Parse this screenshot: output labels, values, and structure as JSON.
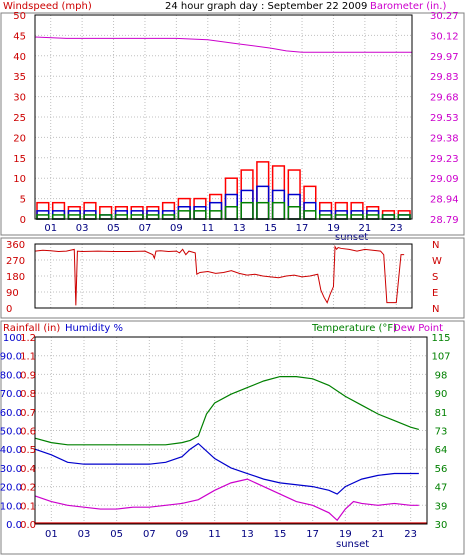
{
  "chart_data": [
    {
      "type": "bar",
      "title": "24 hour graph day : September 22 2009",
      "ylabel_left": "Windspeed (mph)",
      "ylabel_right": "Barometer (in.)",
      "ylim_left": [
        0,
        50
      ],
      "ylim_right": [
        28.79,
        30.27
      ],
      "yticks_left": [
        "0",
        "5",
        "10",
        "15",
        "20",
        "25",
        "30",
        "35",
        "40",
        "45",
        "50"
      ],
      "yticks_right": [
        "28.79",
        "28.94",
        "29.09",
        "29.23",
        "29.38",
        "29.53",
        "29.68",
        "29.83",
        "29.97",
        "30.12",
        "30.27"
      ],
      "xticks": [
        "01",
        "03",
        "05",
        "07",
        "09",
        "11",
        "13",
        "15",
        "17",
        "19",
        "21",
        "23"
      ],
      "x_annotation": "sunset",
      "grid": true,
      "gust_hourly": [
        4,
        4,
        3,
        4,
        3,
        3,
        3,
        3,
        4,
        5,
        5,
        6,
        10,
        12,
        14,
        13,
        12,
        8,
        4,
        4,
        4,
        3,
        2,
        2
      ],
      "speed_hourly": [
        2,
        2,
        2,
        2,
        1,
        2,
        2,
        2,
        2,
        3,
        3,
        4,
        6,
        7,
        8,
        7,
        6,
        4,
        2,
        2,
        2,
        2,
        1,
        1
      ],
      "avg_hourly": [
        1,
        1,
        1,
        1,
        1,
        1,
        1,
        1,
        1,
        2,
        2,
        2,
        3,
        4,
        4,
        4,
        3,
        2,
        1,
        1,
        1,
        1,
        1,
        1
      ],
      "barometer": {
        "x": [
          0,
          2,
          4,
          6,
          8,
          9,
          11,
          13,
          15,
          16,
          17,
          18,
          20,
          22,
          24
        ],
        "y": [
          30.11,
          30.1,
          30.1,
          30.1,
          30.1,
          30.1,
          30.09,
          30.06,
          30.03,
          30.01,
          30.0,
          30.0,
          30.0,
          30.0,
          30.0
        ]
      },
      "colors": {
        "gust": "#ff0000",
        "speed": "#0000cc",
        "average": "#008000",
        "barometer": "#cc00cc",
        "grid": "#c0c0c0"
      }
    },
    {
      "type": "line",
      "title": "",
      "yticks_left": [
        "0",
        "90",
        "180",
        "270",
        "360"
      ],
      "yticks_right": [
        "N",
        "E",
        "S",
        "W",
        "N"
      ],
      "ylim": [
        0,
        360
      ],
      "xticks": [
        "01",
        "03",
        "05",
        "07",
        "09",
        "11",
        "13",
        "15",
        "17",
        "19",
        "21",
        "23"
      ],
      "x_annotation": "sunset",
      "series": [
        {
          "x": [
            0,
            0.5,
            1,
            1.5,
            2,
            2.5,
            2.6,
            2.7,
            3,
            4,
            5,
            6,
            7,
            7.5,
            7.6,
            7.7,
            8,
            8.5,
            9,
            9.2,
            9.4,
            9.6,
            9.8,
            10.2,
            10.3,
            10.5,
            11,
            11.5,
            12,
            12.5,
            13,
            13.5,
            14,
            14.5,
            15,
            15.5,
            16,
            16.5,
            17,
            17.5,
            18,
            18.2,
            18.4,
            18.6,
            18.8,
            19,
            19.1,
            19.2,
            19.3,
            19.5,
            20,
            20.5,
            21,
            21.5,
            22,
            22.2,
            22.4,
            22.6,
            23,
            23.3,
            23.5
          ],
          "y": [
            320,
            325,
            322,
            318,
            320,
            330,
            15,
            320,
            318,
            320,
            318,
            318,
            320,
            300,
            280,
            320,
            322,
            318,
            320,
            310,
            330,
            300,
            320,
            310,
            190,
            200,
            205,
            195,
            200,
            210,
            195,
            185,
            190,
            180,
            175,
            170,
            180,
            185,
            175,
            180,
            190,
            100,
            60,
            30,
            80,
            120,
            345,
            330,
            340,
            335,
            330,
            320,
            330,
            325,
            320,
            300,
            30,
            30,
            30,
            300,
            300
          ]
        }
      ],
      "colors": {
        "direction": "#cc0000",
        "grid": "#c0c0c0"
      }
    },
    {
      "type": "line",
      "title": "",
      "ylabel_left_1": "Rainfall (in)",
      "ylabel_left_2": "Humidity %",
      "ylabel_right_1": "Temperature (°F)",
      "ylabel_right_2": "Dew Point",
      "yticks_humidity": [
        "0.0",
        "10.0",
        "20.0",
        "30.0",
        "40.0",
        "50.0",
        "60.0",
        "70.0",
        "80.0",
        "90.0",
        "100"
      ],
      "yticks_rain": [
        "0.0",
        "0.1",
        "0.2",
        "0.4",
        "0.5",
        "0.6",
        "0.7",
        "0.8",
        "0.9",
        "1.1",
        "1.2"
      ],
      "yticks_right": [
        "30",
        "39",
        "47",
        "56",
        "64",
        "73",
        "81",
        "90",
        "98",
        "107",
        "115"
      ],
      "ylim_left": [
        0,
        100
      ],
      "ylim_right": [
        30,
        115
      ],
      "xticks": [
        "01",
        "03",
        "05",
        "07",
        "09",
        "11",
        "13",
        "15",
        "17",
        "19",
        "21",
        "23"
      ],
      "x_annotation": "sunset",
      "series": [
        {
          "name": "Temperature (°F)",
          "x": [
            0,
            1,
            2,
            3,
            4,
            5,
            6,
            7,
            8,
            9,
            9.5,
            10,
            10.5,
            11,
            12,
            13,
            14,
            15,
            16,
            17,
            18,
            19,
            20,
            21,
            22,
            23,
            23.5
          ],
          "y": [
            69,
            67,
            66,
            66,
            66,
            66,
            66,
            66,
            66,
            67,
            68,
            70,
            80,
            85,
            89,
            92,
            95,
            97,
            97,
            96,
            93,
            88,
            84,
            80,
            77,
            74,
            73
          ]
        },
        {
          "name": "Humidity %",
          "x": [
            0,
            1,
            2,
            3,
            4,
            5,
            6,
            7,
            8,
            9,
            9.5,
            10,
            10.5,
            11,
            12,
            13,
            14,
            15,
            16,
            17,
            18,
            18.5,
            19,
            20,
            21,
            22,
            23,
            23.5
          ],
          "y": [
            40,
            37,
            33,
            32,
            32,
            32,
            32,
            32,
            33,
            36,
            40,
            43,
            39,
            35,
            30,
            27,
            24,
            22,
            21,
            20,
            18,
            16,
            20,
            24,
            26,
            27,
            27,
            27
          ]
        },
        {
          "name": "Dew Point",
          "x": [
            0,
            1,
            2,
            3,
            4,
            5,
            6,
            7,
            8,
            9,
            10,
            11,
            12,
            13,
            14,
            15,
            16,
            17,
            18,
            18.5,
            19,
            19.5,
            20,
            21,
            22,
            23,
            23.5
          ],
          "y": [
            15,
            12,
            10,
            9,
            8,
            8,
            9,
            9,
            10,
            11,
            13,
            18,
            22,
            24,
            20,
            16,
            12,
            10,
            6,
            2,
            8,
            12,
            11,
            10,
            11,
            10,
            10
          ]
        },
        {
          "name": "Rainfall (in)",
          "x": [
            0,
            24
          ],
          "y": [
            0,
            0
          ]
        }
      ],
      "colors": {
        "temperature": "#008000",
        "humidity": "#0000cc",
        "dew_point": "#cc00cc",
        "rain": "#cc0000",
        "grid": "#c0c0c0"
      }
    }
  ]
}
